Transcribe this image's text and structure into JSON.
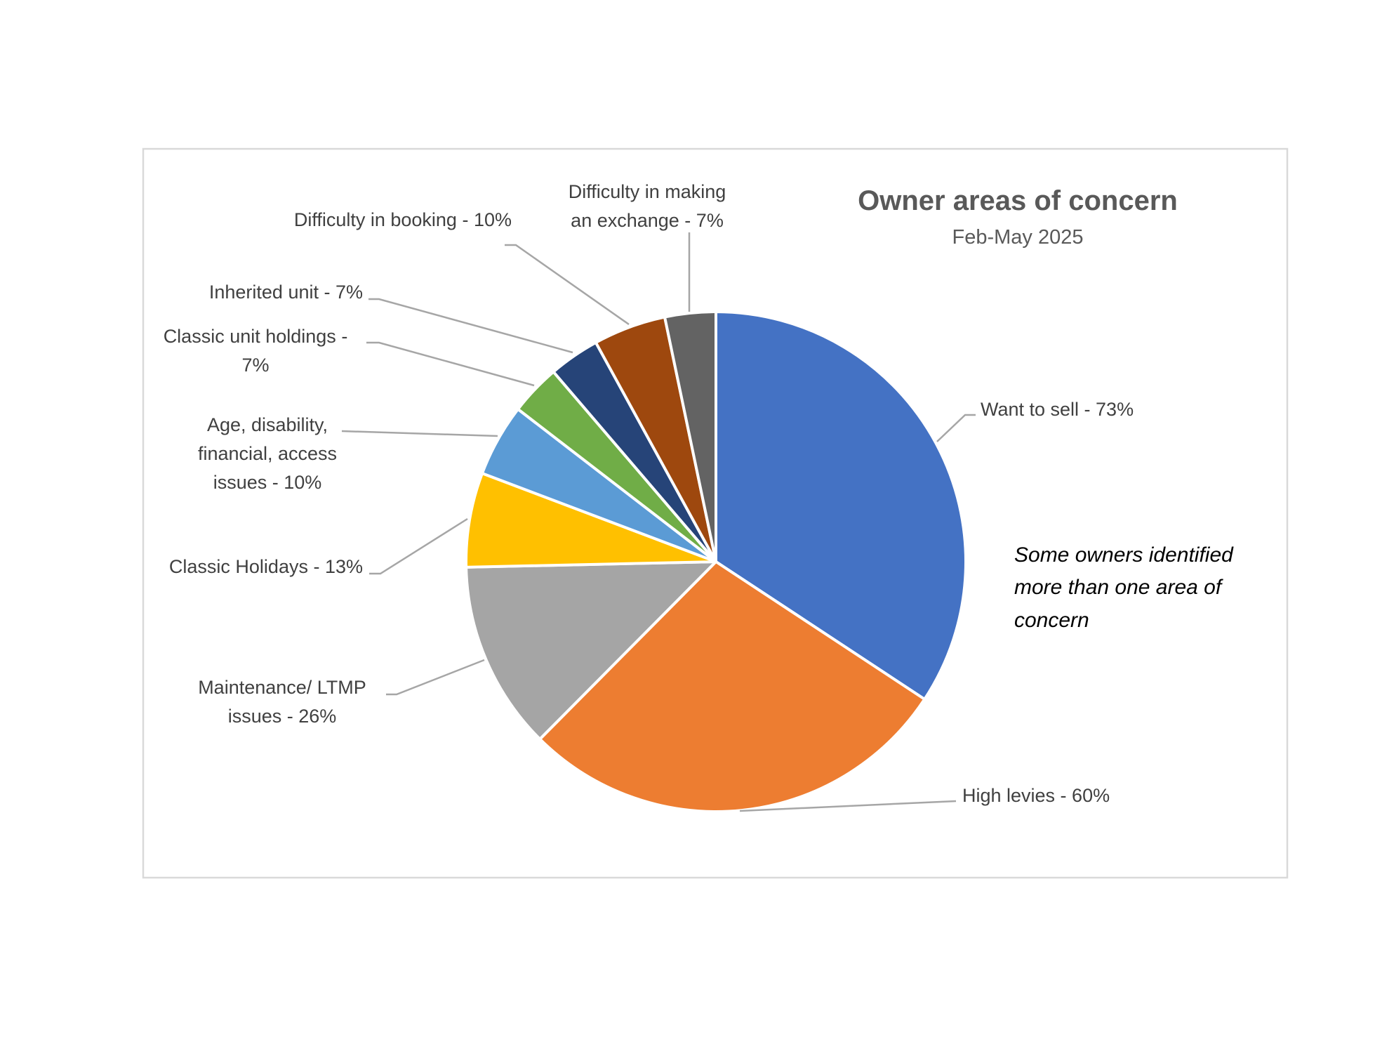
{
  "chart_data": {
    "type": "pie",
    "title": "Owner areas of concern",
    "subtitle": "Feb-May 2025",
    "note": [
      "Some owners identified",
      "more than one area of",
      "concern"
    ],
    "slices": [
      {
        "name": "Want to sell",
        "value": 73,
        "label": [
          "Want to sell - 73%"
        ],
        "color": "#4472C4"
      },
      {
        "name": "High levies",
        "value": 60,
        "label": [
          "High levies - 60%"
        ],
        "color": "#ED7D31"
      },
      {
        "name": "Maintenance/ LTMP issues",
        "value": 26,
        "label": [
          "Maintenance/ LTMP",
          "issues - 26%"
        ],
        "color": "#A5A5A5"
      },
      {
        "name": "Classic Holidays",
        "value": 13,
        "label": [
          "Classic Holidays - 13%"
        ],
        "color": "#FFC000"
      },
      {
        "name": "Age, disability, financial, access issues",
        "value": 10,
        "label": [
          "Age, disability,",
          "financial, access",
          "issues - 10%"
        ],
        "color": "#5B9BD5"
      },
      {
        "name": "Classic unit holdings",
        "value": 7,
        "label": [
          "Classic unit holdings -",
          "7%"
        ],
        "color": "#70AD47"
      },
      {
        "name": "Inherited unit",
        "value": 7,
        "label": [
          "Inherited unit - 7%"
        ],
        "color": "#264478"
      },
      {
        "name": "Difficulty in booking",
        "value": 10,
        "label": [
          "Difficulty in booking - 10%"
        ],
        "color": "#9E480E"
      },
      {
        "name": "Difficulty in making an exchange",
        "value": 7,
        "label": [
          "Difficulty in making",
          "an exchange - 7%"
        ],
        "color": "#636363"
      }
    ]
  }
}
